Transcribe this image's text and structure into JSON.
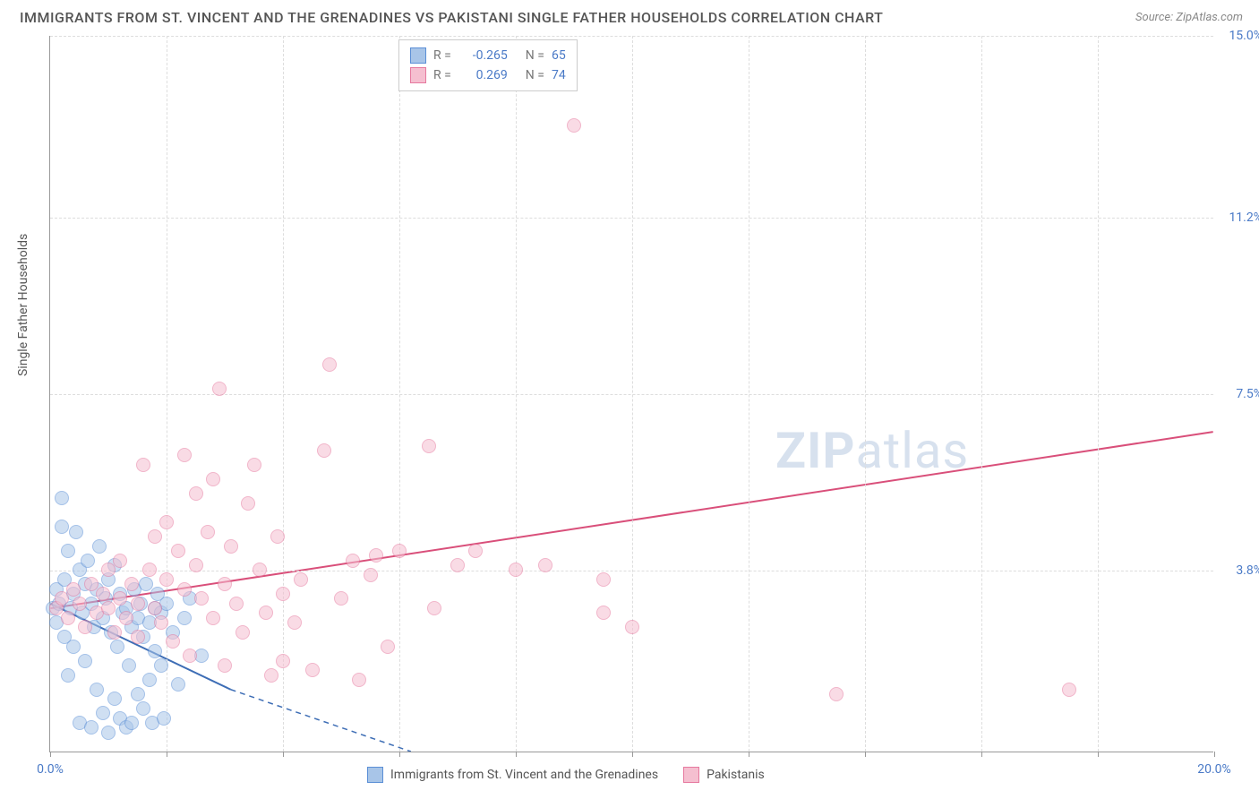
{
  "title": "IMMIGRANTS FROM ST. VINCENT AND THE GRENADINES VS PAKISTANI SINGLE FATHER HOUSEHOLDS CORRELATION CHART",
  "source": "Source: ZipAtlas.com",
  "y_axis_label": "Single Father Households",
  "watermark_zip": "ZIP",
  "watermark_atlas": "atlas",
  "chart": {
    "type": "scatter",
    "xlim": [
      0,
      20
    ],
    "ylim": [
      0,
      15
    ],
    "x_ticks": [
      0,
      2,
      4,
      6,
      8,
      10,
      12,
      14,
      16,
      18,
      20
    ],
    "x_tick_labels": {
      "0": "0.0%",
      "20": "20.0%"
    },
    "y_grid": [
      3.8,
      7.5,
      11.2,
      15.0
    ],
    "y_tick_labels": [
      "3.8%",
      "7.5%",
      "11.2%",
      "15.0%"
    ],
    "background_color": "#ffffff",
    "grid_color": "#dddddd",
    "axis_color": "#999999",
    "tick_label_color": "#4a7ac7",
    "marker_radius": 8,
    "marker_stroke_width": 1.5,
    "series": [
      {
        "name": "Immigrants from St. Vincent and the Grenadines",
        "color_fill": "#a8c5e8",
        "color_stroke": "#5b8fd6",
        "fill_opacity": 0.55,
        "R": "-0.265",
        "N": "65",
        "trend": {
          "x1": 0,
          "y1": 3.1,
          "x2": 3.1,
          "y2": 1.3,
          "dash_from_x": 3.1,
          "dash_to_x": 6.2,
          "dash_to_y": 0,
          "color": "#3d6db5",
          "width": 2
        },
        "points": [
          [
            0.05,
            3.0
          ],
          [
            0.1,
            3.4
          ],
          [
            0.1,
            2.7
          ],
          [
            0.15,
            3.1
          ],
          [
            0.2,
            5.3
          ],
          [
            0.2,
            4.7
          ],
          [
            0.25,
            2.4
          ],
          [
            0.25,
            3.6
          ],
          [
            0.3,
            4.2
          ],
          [
            0.3,
            1.6
          ],
          [
            0.35,
            3.0
          ],
          [
            0.4,
            3.3
          ],
          [
            0.4,
            2.2
          ],
          [
            0.45,
            4.6
          ],
          [
            0.5,
            3.8
          ],
          [
            0.5,
            0.6
          ],
          [
            0.55,
            2.9
          ],
          [
            0.6,
            3.5
          ],
          [
            0.6,
            1.9
          ],
          [
            0.65,
            4.0
          ],
          [
            0.7,
            0.5
          ],
          [
            0.7,
            3.1
          ],
          [
            0.75,
            2.6
          ],
          [
            0.8,
            3.4
          ],
          [
            0.8,
            1.3
          ],
          [
            0.85,
            4.3
          ],
          [
            0.9,
            2.8
          ],
          [
            0.9,
            0.8
          ],
          [
            0.95,
            3.2
          ],
          [
            1.0,
            0.4
          ],
          [
            1.0,
            3.6
          ],
          [
            1.05,
            2.5
          ],
          [
            1.1,
            1.1
          ],
          [
            1.1,
            3.9
          ],
          [
            1.15,
            2.2
          ],
          [
            1.2,
            0.7
          ],
          [
            1.2,
            3.3
          ],
          [
            1.25,
            2.9
          ],
          [
            1.3,
            0.5
          ],
          [
            1.3,
            3.0
          ],
          [
            1.35,
            1.8
          ],
          [
            1.4,
            2.6
          ],
          [
            1.4,
            0.6
          ],
          [
            1.45,
            3.4
          ],
          [
            1.5,
            1.2
          ],
          [
            1.5,
            2.8
          ],
          [
            1.55,
            3.1
          ],
          [
            1.6,
            0.9
          ],
          [
            1.6,
            2.4
          ],
          [
            1.65,
            3.5
          ],
          [
            1.7,
            1.5
          ],
          [
            1.7,
            2.7
          ],
          [
            1.75,
            0.6
          ],
          [
            1.8,
            3.0
          ],
          [
            1.8,
            2.1
          ],
          [
            1.85,
            3.3
          ],
          [
            1.9,
            1.8
          ],
          [
            1.9,
            2.9
          ],
          [
            1.95,
            0.7
          ],
          [
            2.0,
            3.1
          ],
          [
            2.1,
            2.5
          ],
          [
            2.2,
            1.4
          ],
          [
            2.3,
            2.8
          ],
          [
            2.4,
            3.2
          ],
          [
            2.6,
            2.0
          ]
        ]
      },
      {
        "name": "Pakistanis",
        "color_fill": "#f5bfd0",
        "color_stroke": "#e6799f",
        "fill_opacity": 0.55,
        "R": "0.269",
        "N": "74",
        "trend": {
          "x1": 0,
          "y1": 3.0,
          "x2": 20,
          "y2": 6.7,
          "color": "#d94f7a",
          "width": 2
        },
        "points": [
          [
            0.1,
            3.0
          ],
          [
            0.2,
            3.2
          ],
          [
            0.3,
            2.8
          ],
          [
            0.4,
            3.4
          ],
          [
            0.5,
            3.1
          ],
          [
            0.6,
            2.6
          ],
          [
            0.7,
            3.5
          ],
          [
            0.8,
            2.9
          ],
          [
            0.9,
            3.3
          ],
          [
            1.0,
            3.0
          ],
          [
            1.0,
            3.8
          ],
          [
            1.1,
            2.5
          ],
          [
            1.2,
            3.2
          ],
          [
            1.2,
            4.0
          ],
          [
            1.3,
            2.8
          ],
          [
            1.4,
            3.5
          ],
          [
            1.5,
            3.1
          ],
          [
            1.5,
            2.4
          ],
          [
            1.6,
            6.0
          ],
          [
            1.7,
            3.8
          ],
          [
            1.8,
            3.0
          ],
          [
            1.8,
            4.5
          ],
          [
            1.9,
            2.7
          ],
          [
            2.0,
            3.6
          ],
          [
            2.0,
            4.8
          ],
          [
            2.1,
            2.3
          ],
          [
            2.2,
            4.2
          ],
          [
            2.3,
            3.4
          ],
          [
            2.3,
            6.2
          ],
          [
            2.4,
            2.0
          ],
          [
            2.5,
            3.9
          ],
          [
            2.5,
            5.4
          ],
          [
            2.6,
            3.2
          ],
          [
            2.7,
            4.6
          ],
          [
            2.8,
            2.8
          ],
          [
            2.8,
            5.7
          ],
          [
            2.9,
            7.6
          ],
          [
            3.0,
            3.5
          ],
          [
            3.0,
            1.8
          ],
          [
            3.1,
            4.3
          ],
          [
            3.2,
            3.1
          ],
          [
            3.3,
            2.5
          ],
          [
            3.4,
            5.2
          ],
          [
            3.5,
            6.0
          ],
          [
            3.6,
            3.8
          ],
          [
            3.7,
            2.9
          ],
          [
            3.8,
            1.6
          ],
          [
            3.9,
            4.5
          ],
          [
            4.0,
            3.3
          ],
          [
            4.0,
            1.9
          ],
          [
            4.2,
            2.7
          ],
          [
            4.3,
            3.6
          ],
          [
            4.5,
            1.7
          ],
          [
            4.7,
            6.3
          ],
          [
            4.8,
            8.1
          ],
          [
            5.0,
            3.2
          ],
          [
            5.2,
            4.0
          ],
          [
            5.3,
            1.5
          ],
          [
            5.5,
            3.7
          ],
          [
            5.6,
            4.1
          ],
          [
            5.8,
            2.2
          ],
          [
            6.0,
            4.2
          ],
          [
            6.5,
            6.4
          ],
          [
            6.6,
            3.0
          ],
          [
            7.0,
            3.9
          ],
          [
            7.3,
            4.2
          ],
          [
            8.0,
            3.8
          ],
          [
            8.5,
            3.9
          ],
          [
            9.0,
            13.1
          ],
          [
            9.5,
            2.9
          ],
          [
            9.5,
            3.6
          ],
          [
            10.0,
            2.6
          ],
          [
            13.5,
            1.2
          ],
          [
            17.5,
            1.3
          ]
        ]
      }
    ]
  },
  "legend_top": {
    "r_label": "R =",
    "n_label": "N ="
  },
  "legend_bottom": [
    {
      "label": "Immigrants from St. Vincent and the Grenadines",
      "fill": "#a8c5e8",
      "stroke": "#5b8fd6"
    },
    {
      "label": "Pakistanis",
      "fill": "#f5bfd0",
      "stroke": "#e6799f"
    }
  ]
}
